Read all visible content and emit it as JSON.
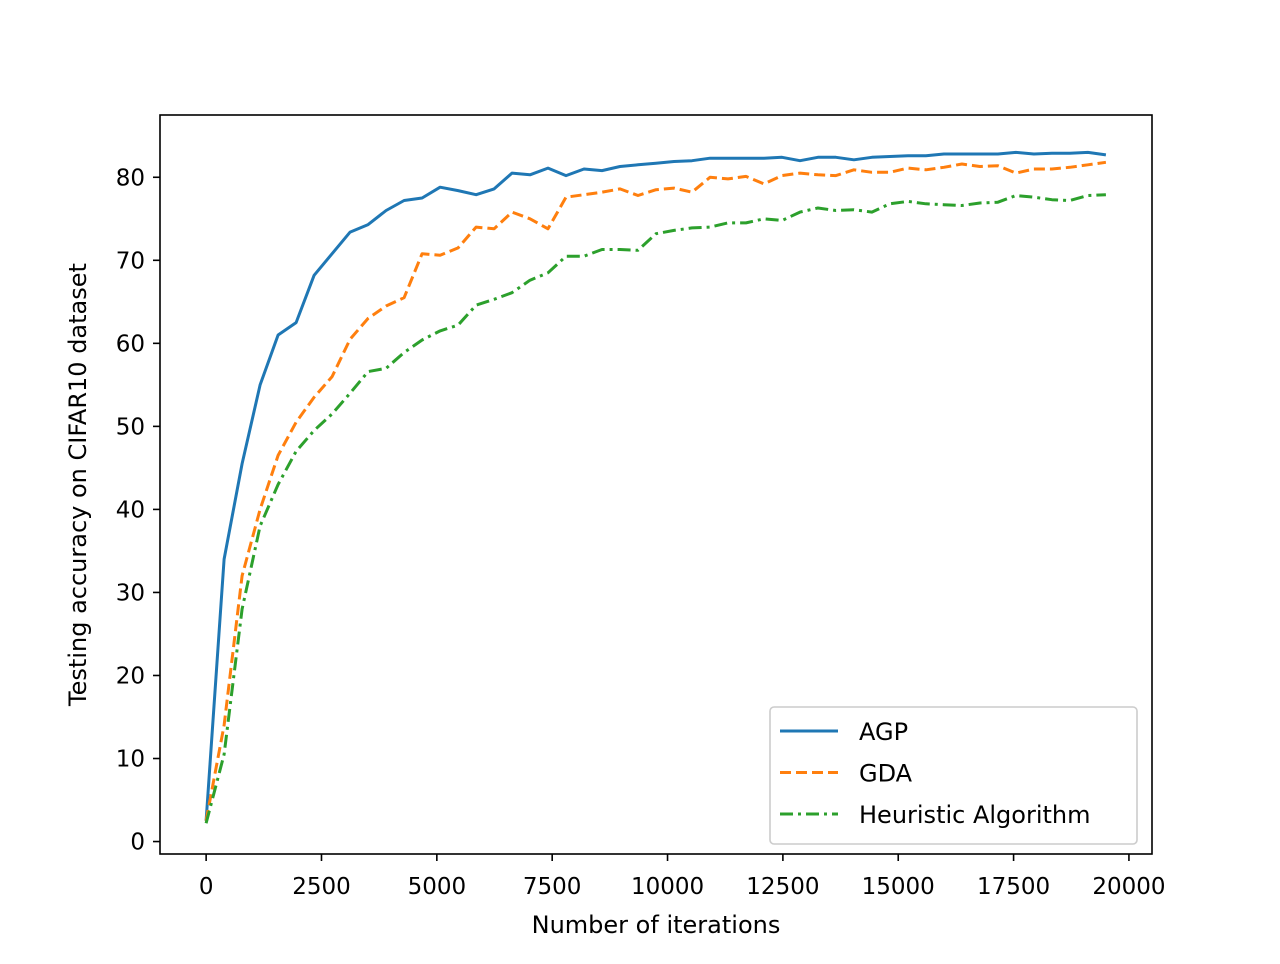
{
  "chart_data": {
    "type": "line",
    "title": "",
    "xlabel": "Number of iterations",
    "ylabel": "Testing accuracy on CIFAR10 dataset",
    "xlim": [
      -1000,
      20500
    ],
    "ylim": [
      -1.5,
      87.5
    ],
    "xticks": [
      0,
      2500,
      5000,
      7500,
      10000,
      12500,
      15000,
      17500,
      20000
    ],
    "yticks": [
      0,
      10,
      20,
      30,
      40,
      50,
      60,
      70,
      80
    ],
    "grid": false,
    "legend_position": "lower-right",
    "series": [
      {
        "name": "AGP",
        "color": "#1f77b4",
        "linestyle": "solid",
        "x": [
          0,
          390,
          780,
          1170,
          1560,
          1950,
          2340,
          2730,
          3120,
          3510,
          3900,
          4290,
          4680,
          5070,
          5460,
          5850,
          6240,
          6630,
          7020,
          7410,
          7800,
          8190,
          8580,
          8970,
          9360,
          9750,
          10140,
          10530,
          10920,
          11310,
          11700,
          12090,
          12480,
          12870,
          13260,
          13650,
          14040,
          14430,
          14820,
          15210,
          15600,
          15990,
          16380,
          16770,
          17160,
          17550,
          17940,
          18330,
          18720,
          19110,
          19500
        ],
        "y": [
          2.5,
          34.0,
          45.5,
          55.0,
          61.0,
          62.5,
          68.2,
          70.8,
          73.4,
          74.3,
          76.0,
          77.2,
          77.5,
          78.8,
          78.4,
          77.9,
          78.6,
          80.5,
          80.3,
          81.1,
          80.2,
          81.0,
          80.8,
          81.3,
          81.5,
          81.7,
          81.9,
          82.0,
          82.3,
          82.3,
          82.3,
          82.3,
          82.4,
          82.0,
          82.4,
          82.4,
          82.1,
          82.4,
          82.5,
          82.6,
          82.6,
          82.8,
          82.8,
          82.8,
          82.8,
          83.0,
          82.8,
          82.9,
          82.9,
          83.0,
          82.7
        ]
      },
      {
        "name": "GDA",
        "color": "#ff7f0e",
        "linestyle": "dashed",
        "x": [
          0,
          390,
          780,
          1170,
          1560,
          1950,
          2340,
          2730,
          3120,
          3510,
          3900,
          4290,
          4680,
          5070,
          5460,
          5850,
          6240,
          6630,
          7020,
          7410,
          7800,
          8190,
          8580,
          8970,
          9360,
          9750,
          10140,
          10530,
          10920,
          11310,
          11700,
          12090,
          12480,
          12870,
          13260,
          13650,
          14040,
          14430,
          14820,
          15210,
          15600,
          15990,
          16380,
          16770,
          17160,
          17550,
          17940,
          18330,
          18720,
          19110,
          19500
        ],
        "y": [
          2.5,
          14.0,
          32.0,
          40.0,
          46.5,
          50.5,
          53.5,
          56.0,
          60.5,
          63.0,
          64.5,
          65.5,
          70.8,
          70.6,
          71.5,
          74.0,
          73.8,
          75.8,
          75.0,
          73.8,
          77.6,
          77.9,
          78.2,
          78.6,
          77.8,
          78.5,
          78.7,
          78.2,
          80.0,
          79.8,
          80.1,
          79.2,
          80.2,
          80.5,
          80.3,
          80.2,
          80.9,
          80.6,
          80.6,
          81.1,
          80.9,
          81.2,
          81.6,
          81.3,
          81.4,
          80.5,
          81.0,
          81.0,
          81.2,
          81.5,
          81.8
        ]
      },
      {
        "name": "Heuristic Algorithm",
        "color": "#2ca02c",
        "linestyle": "dashdot",
        "x": [
          0,
          390,
          780,
          1170,
          1560,
          1950,
          2340,
          2730,
          3120,
          3510,
          3900,
          4290,
          4680,
          5070,
          5460,
          5850,
          6240,
          6630,
          7020,
          7410,
          7800,
          8190,
          8580,
          8970,
          9360,
          9750,
          10140,
          10530,
          10920,
          11310,
          11700,
          12090,
          12480,
          12870,
          13260,
          13650,
          14040,
          14430,
          14820,
          15210,
          15600,
          15990,
          16380,
          16770,
          17160,
          17550,
          17940,
          18330,
          18720,
          19110,
          19500
        ],
        "y": [
          2.2,
          10.5,
          28.0,
          38.0,
          43.0,
          47.0,
          49.5,
          51.5,
          54.0,
          56.6,
          57.0,
          58.9,
          60.4,
          61.5,
          62.2,
          64.6,
          65.3,
          66.1,
          67.6,
          68.5,
          70.5,
          70.5,
          71.3,
          71.3,
          71.2,
          73.2,
          73.6,
          73.9,
          74.0,
          74.5,
          74.5,
          75.0,
          74.8,
          75.8,
          76.3,
          76.0,
          76.1,
          75.8,
          76.8,
          77.1,
          76.8,
          76.7,
          76.6,
          76.9,
          77.0,
          77.8,
          77.6,
          77.3,
          77.2,
          77.8,
          77.9
        ]
      }
    ]
  }
}
